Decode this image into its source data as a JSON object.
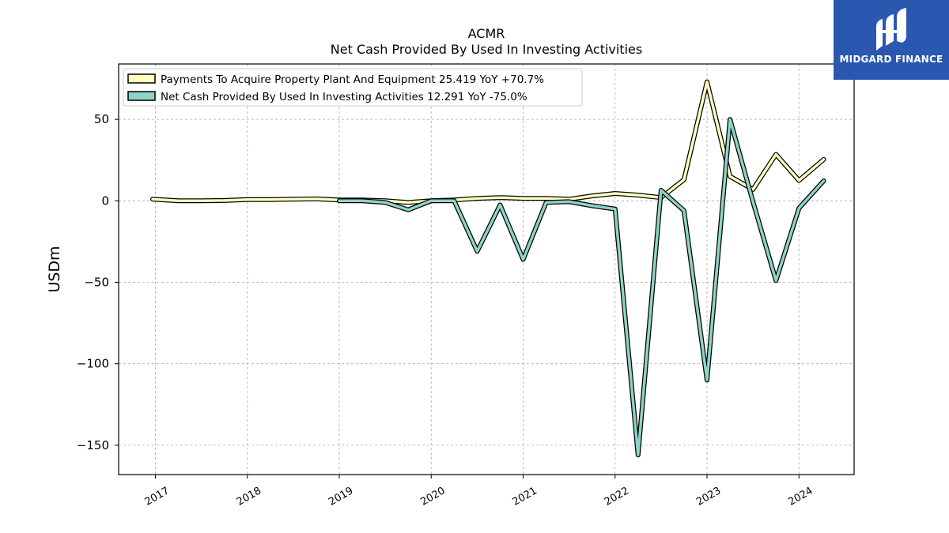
{
  "chart_data": {
    "type": "line",
    "title": "ACMR",
    "subtitle": "Net Cash Provided By Used In Investing Activities",
    "ylabel": "USDm",
    "xlabel": "",
    "ylim": [
      -168,
      84
    ],
    "xlim": [
      2016.6,
      2024.6
    ],
    "yticks": [
      50,
      0,
      -50,
      -100,
      -150
    ],
    "ytick_labels": [
      "50",
      "0",
      "−50",
      "−100",
      "−150"
    ],
    "xticks": [
      2017,
      2018,
      2019,
      2020,
      2021,
      2022,
      2023,
      2024
    ],
    "xtick_labels": [
      "2017",
      "2018",
      "2019",
      "2020",
      "2021",
      "2022",
      "2023",
      "2024"
    ],
    "grid": true,
    "legend_position": "top-left",
    "series": [
      {
        "name": "Payments To Acquire Property Plant And Equipment",
        "legend_label": "Payments To Acquire Property Plant And Equipment  25.419 YoY +70.7%",
        "color": "#ffffbf",
        "x": [
          2016.97,
          2017.25,
          2017.5,
          2017.75,
          2018.0,
          2018.25,
          2018.5,
          2018.75,
          2019.0,
          2019.25,
          2019.5,
          2019.75,
          2020.0,
          2020.25,
          2020.5,
          2020.75,
          2021.0,
          2021.25,
          2021.5,
          2021.75,
          2022.0,
          2022.25,
          2022.5,
          2022.75,
          2023.0,
          2023.25,
          2023.5,
          2023.75,
          2024.0,
          2024.27
        ],
        "y": [
          1,
          0,
          0,
          0.2,
          0.8,
          0.8,
          1,
          1.2,
          0.5,
          0.5,
          0,
          -1,
          0,
          0.5,
          1.5,
          2,
          1.5,
          1.5,
          1,
          3,
          4.5,
          3.5,
          2,
          13,
          73,
          15,
          7,
          28.5,
          12.5,
          25.4
        ]
      },
      {
        "name": "Net Cash Provided By Used In Investing Activities",
        "legend_label": "Net Cash Provided By Used In Investing Activities  12.291 YoY -75.0%",
        "color": "#8dd3c7",
        "x": [
          2019.0,
          2019.25,
          2019.5,
          2019.75,
          2020.0,
          2020.25,
          2020.5,
          2020.75,
          2021.0,
          2021.25,
          2021.5,
          2021.75,
          2022.0,
          2022.25,
          2022.5,
          2022.75,
          2023.0,
          2023.25,
          2023.5,
          2023.75,
          2024.0,
          2024.27
        ],
        "y": [
          0,
          0,
          -1,
          -5.5,
          0,
          0,
          -31,
          -2.5,
          -36,
          -1,
          -0.5,
          -3,
          -5,
          -156,
          6.5,
          -6,
          -110,
          50,
          -0.5,
          -49,
          -4.5,
          12.3
        ]
      }
    ]
  },
  "logo": {
    "text": "MIDGARD FINANCE",
    "color": "#2a57b0"
  }
}
